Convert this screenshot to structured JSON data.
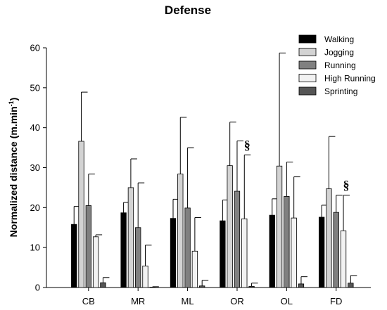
{
  "chart_data": {
    "type": "bar",
    "title": "Defense",
    "ylabel_main": "Normalized distance (m.min",
    "ylabel_sup": "-1",
    "ylabel_end": ")",
    "xlabel": "",
    "ylim": [
      0,
      60
    ],
    "yticks": [
      "0",
      "10",
      "20",
      "30",
      "40",
      "50",
      "60"
    ],
    "categories": [
      "CB",
      "MR",
      "ML",
      "OR",
      "OL",
      "FD"
    ],
    "legend_position": "top-right",
    "series": [
      {
        "name": "Walking",
        "color": "#000000",
        "values": [
          15.8,
          18.7,
          17.3,
          16.7,
          18.1,
          17.6
        ],
        "errors": [
          4.5,
          2.6,
          4.8,
          5.2,
          4.1,
          3.0
        ]
      },
      {
        "name": "Jogging",
        "color": "#d3d3d3",
        "values": [
          36.6,
          25.0,
          28.4,
          30.5,
          30.4,
          24.7
        ],
        "errors": [
          12.3,
          7.2,
          14.2,
          10.9,
          28.3,
          13.1
        ]
      },
      {
        "name": "Running",
        "color": "#808080",
        "values": [
          20.5,
          15.0,
          19.9,
          24.1,
          22.8,
          18.8
        ],
        "errors": [
          7.9,
          11.2,
          15.1,
          12.6,
          8.6,
          4.3
        ]
      },
      {
        "name": "High Running",
        "color": "#f2f2f2",
        "values": [
          12.7,
          5.4,
          9.1,
          17.2,
          17.4,
          14.2
        ],
        "errors": [
          0.5,
          5.2,
          8.4,
          16.0,
          10.3,
          8.9
        ]
      },
      {
        "name": "Sprinting",
        "color": "#555555",
        "values": [
          1.2,
          0.1,
          0.4,
          0.3,
          0.9,
          1.1
        ],
        "errors": [
          1.3,
          0.1,
          1.4,
          0.8,
          1.8,
          1.9
        ]
      }
    ],
    "annotations": [
      {
        "category": "OR",
        "series": "High Running",
        "text": "§"
      },
      {
        "category": "FD",
        "series": "High Running",
        "text": "§"
      }
    ]
  }
}
